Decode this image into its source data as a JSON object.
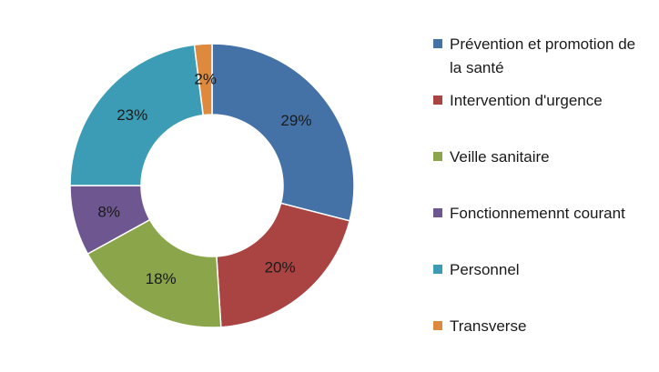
{
  "chart_data": {
    "type": "pie",
    "donut": true,
    "legend_position": "right",
    "slices": [
      {
        "label": "Prévention et promotion de la santé",
        "value": 29,
        "value_label": "29%",
        "color": "#4472a6"
      },
      {
        "label": "Intervention d'urgence",
        "value": 20,
        "value_label": "20%",
        "color": "#a94443"
      },
      {
        "label": "Veille sanitaire",
        "value": 18,
        "value_label": "18%",
        "color": "#8aa54a"
      },
      {
        "label": "Fonctionnemennt courant",
        "value": 8,
        "value_label": "8%",
        "color": "#6e5791"
      },
      {
        "label": "Personnel",
        "value": 23,
        "value_label": "23%",
        "color": "#3c9cb5"
      },
      {
        "label": "Transverse",
        "value": 2,
        "value_label": "2%",
        "color": "#dd8a3e"
      }
    ]
  }
}
